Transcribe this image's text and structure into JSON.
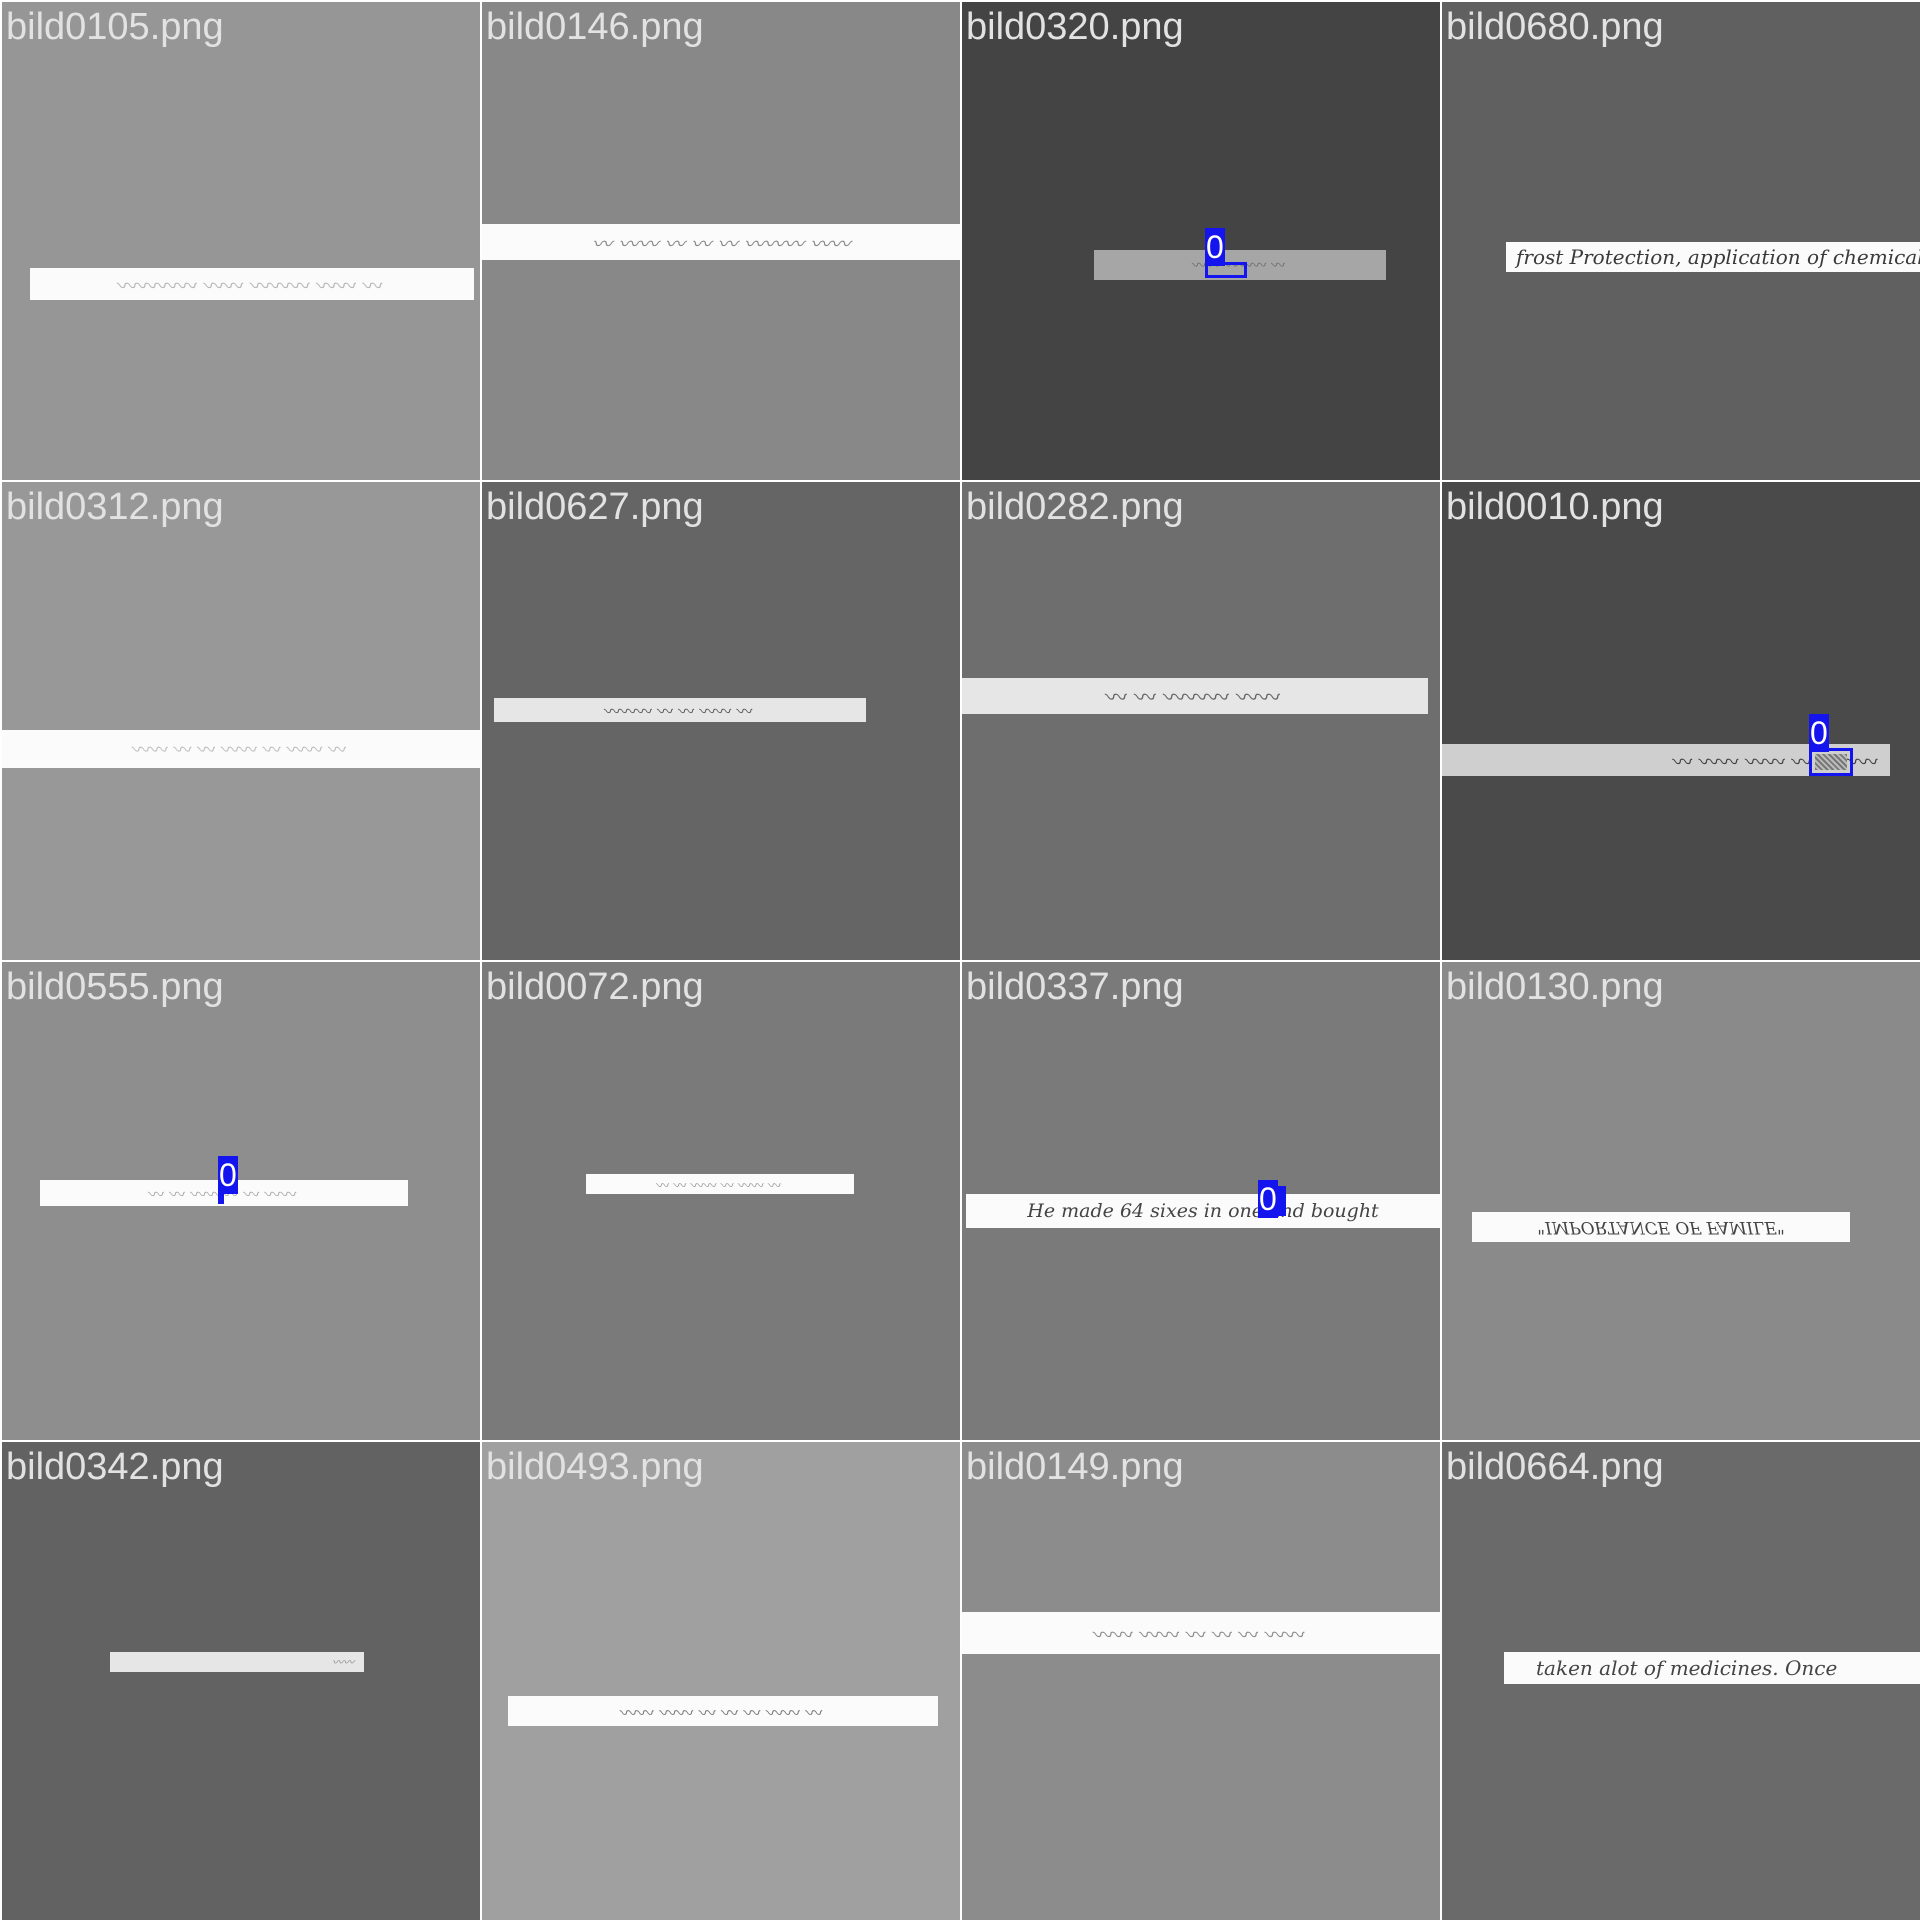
{
  "tiles": [
    {
      "filename": "bild0105.png",
      "bg": "#969696",
      "text": "",
      "detections": []
    },
    {
      "filename": "bild0146.png",
      "bg": "#888888",
      "text": "",
      "detections": []
    },
    {
      "filename": "bild0320.png",
      "bg": "#444444",
      "text": "",
      "detections": [
        {
          "class_label": "0"
        }
      ]
    },
    {
      "filename": "bild0680.png",
      "bg": "#606060",
      "text": "frost Protection, application of chemical",
      "detections": []
    },
    {
      "filename": "bild0312.png",
      "bg": "#989898",
      "text": "",
      "detections": []
    },
    {
      "filename": "bild0627.png",
      "bg": "#656565",
      "text": "",
      "detections": []
    },
    {
      "filename": "bild0282.png",
      "bg": "#6e6e6e",
      "text": "",
      "detections": []
    },
    {
      "filename": "bild0010.png",
      "bg": "#4a4a4a",
      "text": "",
      "detections": [
        {
          "class_label": "0"
        }
      ]
    },
    {
      "filename": "bild0555.png",
      "bg": "#8e8e8e",
      "text": "",
      "detections": [
        {
          "class_label": "0"
        }
      ]
    },
    {
      "filename": "bild0072.png",
      "bg": "#7a7a7a",
      "text": "",
      "detections": []
    },
    {
      "filename": "bild0337.png",
      "bg": "#7a7a7a",
      "text": "He made 64 sixes in one and bought",
      "detections": [
        {
          "class_label": "0"
        }
      ]
    },
    {
      "filename": "bild0130.png",
      "bg": "#8a8a8a",
      "text": "\"IMPORTANCE OF FAMILE\"",
      "detections": []
    },
    {
      "filename": "bild0342.png",
      "bg": "#626262",
      "text": "",
      "detections": []
    },
    {
      "filename": "bild0493.png",
      "bg": "#a0a0a0",
      "text": "",
      "detections": []
    },
    {
      "filename": "bild0149.png",
      "bg": "#8c8c8c",
      "text": "",
      "detections": []
    },
    {
      "filename": "bild0664.png",
      "bg": "#6a6a6a",
      "text": "taken alot of medicines. Once",
      "detections": []
    }
  ]
}
